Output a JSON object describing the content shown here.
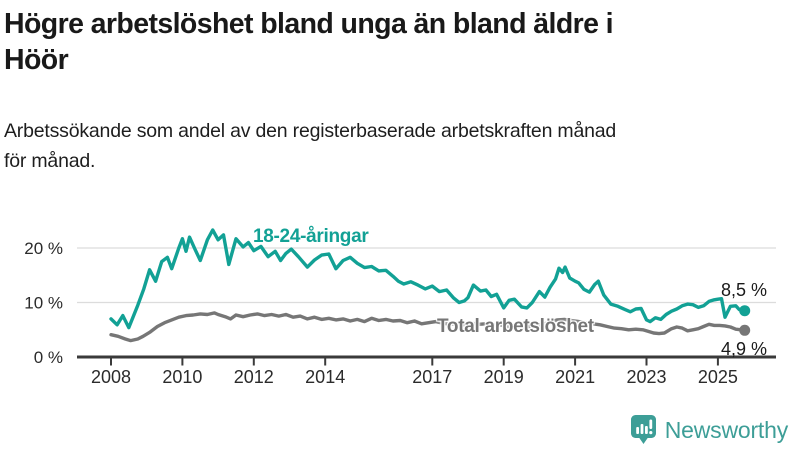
{
  "chart_data": {
    "type": "line",
    "title": "Högre arbetslöshet bland unga än bland äldre i\nHöör",
    "subtitle": "Arbetssökande som andel av den registerbaserade arbetskraften månad\nför månad.",
    "x_unit": "year",
    "xlim": [
      2007.0,
      2026.7
    ],
    "ylim": [
      0,
      24
    ],
    "grid": "horizontal",
    "legend_position": "inline-labels",
    "x_axis": {
      "tick_years": [
        2008,
        2010,
        2012,
        2014,
        2017,
        2019,
        2021,
        2023,
        2025
      ],
      "tick_labels": [
        "2008",
        "2010",
        "2012",
        "2014",
        "2017",
        "2019",
        "2021",
        "2023",
        "2025"
      ]
    },
    "y_axis": {
      "tick_values": [
        0,
        10,
        20
      ],
      "tick_labels": [
        "0 %",
        "10 %",
        "20 %"
      ]
    },
    "axis_color": "#3a3a3a",
    "gridline_color": "#dcdcdc",
    "series": [
      {
        "name": "18-24-åringar",
        "color": "#12A195",
        "end_label": "8,5 %",
        "end_value": 8.5,
        "points": [
          [
            2008.0,
            7.0
          ],
          [
            2008.17,
            5.9
          ],
          [
            2008.33,
            7.6
          ],
          [
            2008.5,
            5.4
          ],
          [
            2008.75,
            9.5
          ],
          [
            2008.92,
            12.5
          ],
          [
            2009.08,
            16.0
          ],
          [
            2009.25,
            13.9
          ],
          [
            2009.42,
            17.5
          ],
          [
            2009.58,
            18.3
          ],
          [
            2009.7,
            16.2
          ],
          [
            2009.9,
            20.0
          ],
          [
            2010.0,
            21.7
          ],
          [
            2010.1,
            19.4
          ],
          [
            2010.2,
            22.0
          ],
          [
            2010.35,
            19.8
          ],
          [
            2010.5,
            17.7
          ],
          [
            2010.7,
            21.5
          ],
          [
            2010.85,
            23.3
          ],
          [
            2011.0,
            21.5
          ],
          [
            2011.15,
            22.4
          ],
          [
            2011.3,
            17.0
          ],
          [
            2011.5,
            21.7
          ],
          [
            2011.7,
            20.2
          ],
          [
            2011.85,
            21.0
          ],
          [
            2012.0,
            19.5
          ],
          [
            2012.2,
            20.3
          ],
          [
            2012.4,
            18.4
          ],
          [
            2012.6,
            19.4
          ],
          [
            2012.75,
            17.7
          ],
          [
            2012.9,
            19.0
          ],
          [
            2013.05,
            19.8
          ],
          [
            2013.25,
            18.4
          ],
          [
            2013.5,
            16.5
          ],
          [
            2013.7,
            17.8
          ],
          [
            2013.9,
            18.7
          ],
          [
            2014.1,
            18.9
          ],
          [
            2014.3,
            16.2
          ],
          [
            2014.5,
            17.7
          ],
          [
            2014.7,
            18.3
          ],
          [
            2014.9,
            17.2
          ],
          [
            2015.1,
            16.4
          ],
          [
            2015.3,
            16.6
          ],
          [
            2015.5,
            15.8
          ],
          [
            2015.7,
            15.9
          ],
          [
            2015.9,
            14.8
          ],
          [
            2016.05,
            13.9
          ],
          [
            2016.2,
            13.4
          ],
          [
            2016.4,
            13.8
          ],
          [
            2016.6,
            13.2
          ],
          [
            2016.8,
            12.5
          ],
          [
            2017.0,
            13.0
          ],
          [
            2017.2,
            12.0
          ],
          [
            2017.4,
            12.3
          ],
          [
            2017.6,
            10.8
          ],
          [
            2017.75,
            10.0
          ],
          [
            2017.9,
            10.3
          ],
          [
            2018.0,
            10.9
          ],
          [
            2018.15,
            13.2
          ],
          [
            2018.35,
            12.1
          ],
          [
            2018.5,
            12.3
          ],
          [
            2018.65,
            11.1
          ],
          [
            2018.8,
            11.5
          ],
          [
            2019.0,
            9.0
          ],
          [
            2019.15,
            10.4
          ],
          [
            2019.3,
            10.6
          ],
          [
            2019.5,
            9.2
          ],
          [
            2019.65,
            9.0
          ],
          [
            2019.8,
            10.0
          ],
          [
            2020.0,
            12.0
          ],
          [
            2020.15,
            11.0
          ],
          [
            2020.3,
            12.8
          ],
          [
            2020.45,
            14.3
          ],
          [
            2020.55,
            16.3
          ],
          [
            2020.65,
            15.5
          ],
          [
            2020.72,
            16.5
          ],
          [
            2020.85,
            14.5
          ],
          [
            2021.0,
            13.9
          ],
          [
            2021.1,
            13.6
          ],
          [
            2021.25,
            12.4
          ],
          [
            2021.4,
            11.9
          ],
          [
            2021.55,
            13.3
          ],
          [
            2021.65,
            13.9
          ],
          [
            2021.8,
            11.4
          ],
          [
            2022.0,
            9.7
          ],
          [
            2022.2,
            9.3
          ],
          [
            2022.4,
            8.7
          ],
          [
            2022.55,
            8.3
          ],
          [
            2022.7,
            8.8
          ],
          [
            2022.85,
            8.9
          ],
          [
            2023.0,
            6.8
          ],
          [
            2023.1,
            6.5
          ],
          [
            2023.25,
            7.2
          ],
          [
            2023.4,
            6.9
          ],
          [
            2023.55,
            7.8
          ],
          [
            2023.7,
            8.4
          ],
          [
            2023.85,
            8.8
          ],
          [
            2024.0,
            9.4
          ],
          [
            2024.15,
            9.7
          ],
          [
            2024.3,
            9.6
          ],
          [
            2024.45,
            9.1
          ],
          [
            2024.6,
            9.4
          ],
          [
            2024.75,
            10.2
          ],
          [
            2024.9,
            10.5
          ],
          [
            2025.0,
            10.6
          ],
          [
            2025.1,
            10.7
          ],
          [
            2025.2,
            7.3
          ],
          [
            2025.35,
            9.3
          ],
          [
            2025.5,
            9.4
          ],
          [
            2025.6,
            8.7
          ],
          [
            2025.75,
            8.5
          ]
        ]
      },
      {
        "name": "Total arbetslöshet",
        "color": "#767676",
        "end_label": "4,9 %",
        "end_value": 4.9,
        "points": [
          [
            2008.0,
            4.1
          ],
          [
            2008.2,
            3.8
          ],
          [
            2008.4,
            3.3
          ],
          [
            2008.55,
            3.0
          ],
          [
            2008.75,
            3.3
          ],
          [
            2008.9,
            3.8
          ],
          [
            2009.1,
            4.6
          ],
          [
            2009.3,
            5.6
          ],
          [
            2009.5,
            6.3
          ],
          [
            2009.7,
            6.8
          ],
          [
            2009.9,
            7.3
          ],
          [
            2010.1,
            7.6
          ],
          [
            2010.3,
            7.7
          ],
          [
            2010.5,
            7.9
          ],
          [
            2010.7,
            7.8
          ],
          [
            2010.9,
            8.1
          ],
          [
            2011.0,
            7.8
          ],
          [
            2011.2,
            7.4
          ],
          [
            2011.35,
            7.0
          ],
          [
            2011.5,
            7.7
          ],
          [
            2011.7,
            7.4
          ],
          [
            2011.9,
            7.7
          ],
          [
            2012.1,
            7.9
          ],
          [
            2012.3,
            7.6
          ],
          [
            2012.5,
            7.8
          ],
          [
            2012.7,
            7.5
          ],
          [
            2012.9,
            7.8
          ],
          [
            2013.1,
            7.3
          ],
          [
            2013.3,
            7.5
          ],
          [
            2013.5,
            7.0
          ],
          [
            2013.7,
            7.3
          ],
          [
            2013.9,
            6.9
          ],
          [
            2014.1,
            7.1
          ],
          [
            2014.3,
            6.8
          ],
          [
            2014.5,
            7.0
          ],
          [
            2014.7,
            6.6
          ],
          [
            2014.9,
            6.9
          ],
          [
            2015.1,
            6.5
          ],
          [
            2015.3,
            7.1
          ],
          [
            2015.5,
            6.7
          ],
          [
            2015.7,
            6.9
          ],
          [
            2015.9,
            6.6
          ],
          [
            2016.1,
            6.7
          ],
          [
            2016.3,
            6.3
          ],
          [
            2016.5,
            6.6
          ],
          [
            2016.7,
            6.1
          ],
          [
            2016.9,
            6.3
          ],
          [
            2017.1,
            6.5
          ],
          [
            2017.3,
            6.2
          ],
          [
            2017.5,
            6.0
          ],
          [
            2017.7,
            6.1
          ],
          [
            2017.9,
            5.9
          ],
          [
            2018.1,
            6.2
          ],
          [
            2018.3,
            6.0
          ],
          [
            2018.5,
            6.1
          ],
          [
            2018.7,
            5.8
          ],
          [
            2018.9,
            5.9
          ],
          [
            2019.1,
            5.6
          ],
          [
            2019.3,
            5.7
          ],
          [
            2019.5,
            5.5
          ],
          [
            2019.7,
            5.6
          ],
          [
            2019.9,
            5.7
          ],
          [
            2020.1,
            6.0
          ],
          [
            2020.3,
            6.4
          ],
          [
            2020.5,
            6.8
          ],
          [
            2020.7,
            6.9
          ],
          [
            2020.9,
            6.7
          ],
          [
            2021.1,
            6.5
          ],
          [
            2021.3,
            6.3
          ],
          [
            2021.5,
            6.1
          ],
          [
            2021.7,
            5.9
          ],
          [
            2021.9,
            5.6
          ],
          [
            2022.1,
            5.3
          ],
          [
            2022.3,
            5.2
          ],
          [
            2022.5,
            5.0
          ],
          [
            2022.7,
            5.1
          ],
          [
            2022.9,
            5.0
          ],
          [
            2023.05,
            4.7
          ],
          [
            2023.2,
            4.4
          ],
          [
            2023.35,
            4.3
          ],
          [
            2023.5,
            4.4
          ],
          [
            2023.7,
            5.2
          ],
          [
            2023.85,
            5.5
          ],
          [
            2024.0,
            5.3
          ],
          [
            2024.15,
            4.8
          ],
          [
            2024.3,
            5.0
          ],
          [
            2024.45,
            5.2
          ],
          [
            2024.6,
            5.6
          ],
          [
            2024.75,
            6.0
          ],
          [
            2024.9,
            5.8
          ],
          [
            2025.05,
            5.8
          ],
          [
            2025.2,
            5.7
          ],
          [
            2025.35,
            5.5
          ],
          [
            2025.5,
            5.1
          ],
          [
            2025.65,
            5.0
          ],
          [
            2025.75,
            4.9
          ]
        ]
      }
    ]
  },
  "branding": {
    "logo_text": "Newsworthy",
    "logo_color": "#3D9E97"
  }
}
